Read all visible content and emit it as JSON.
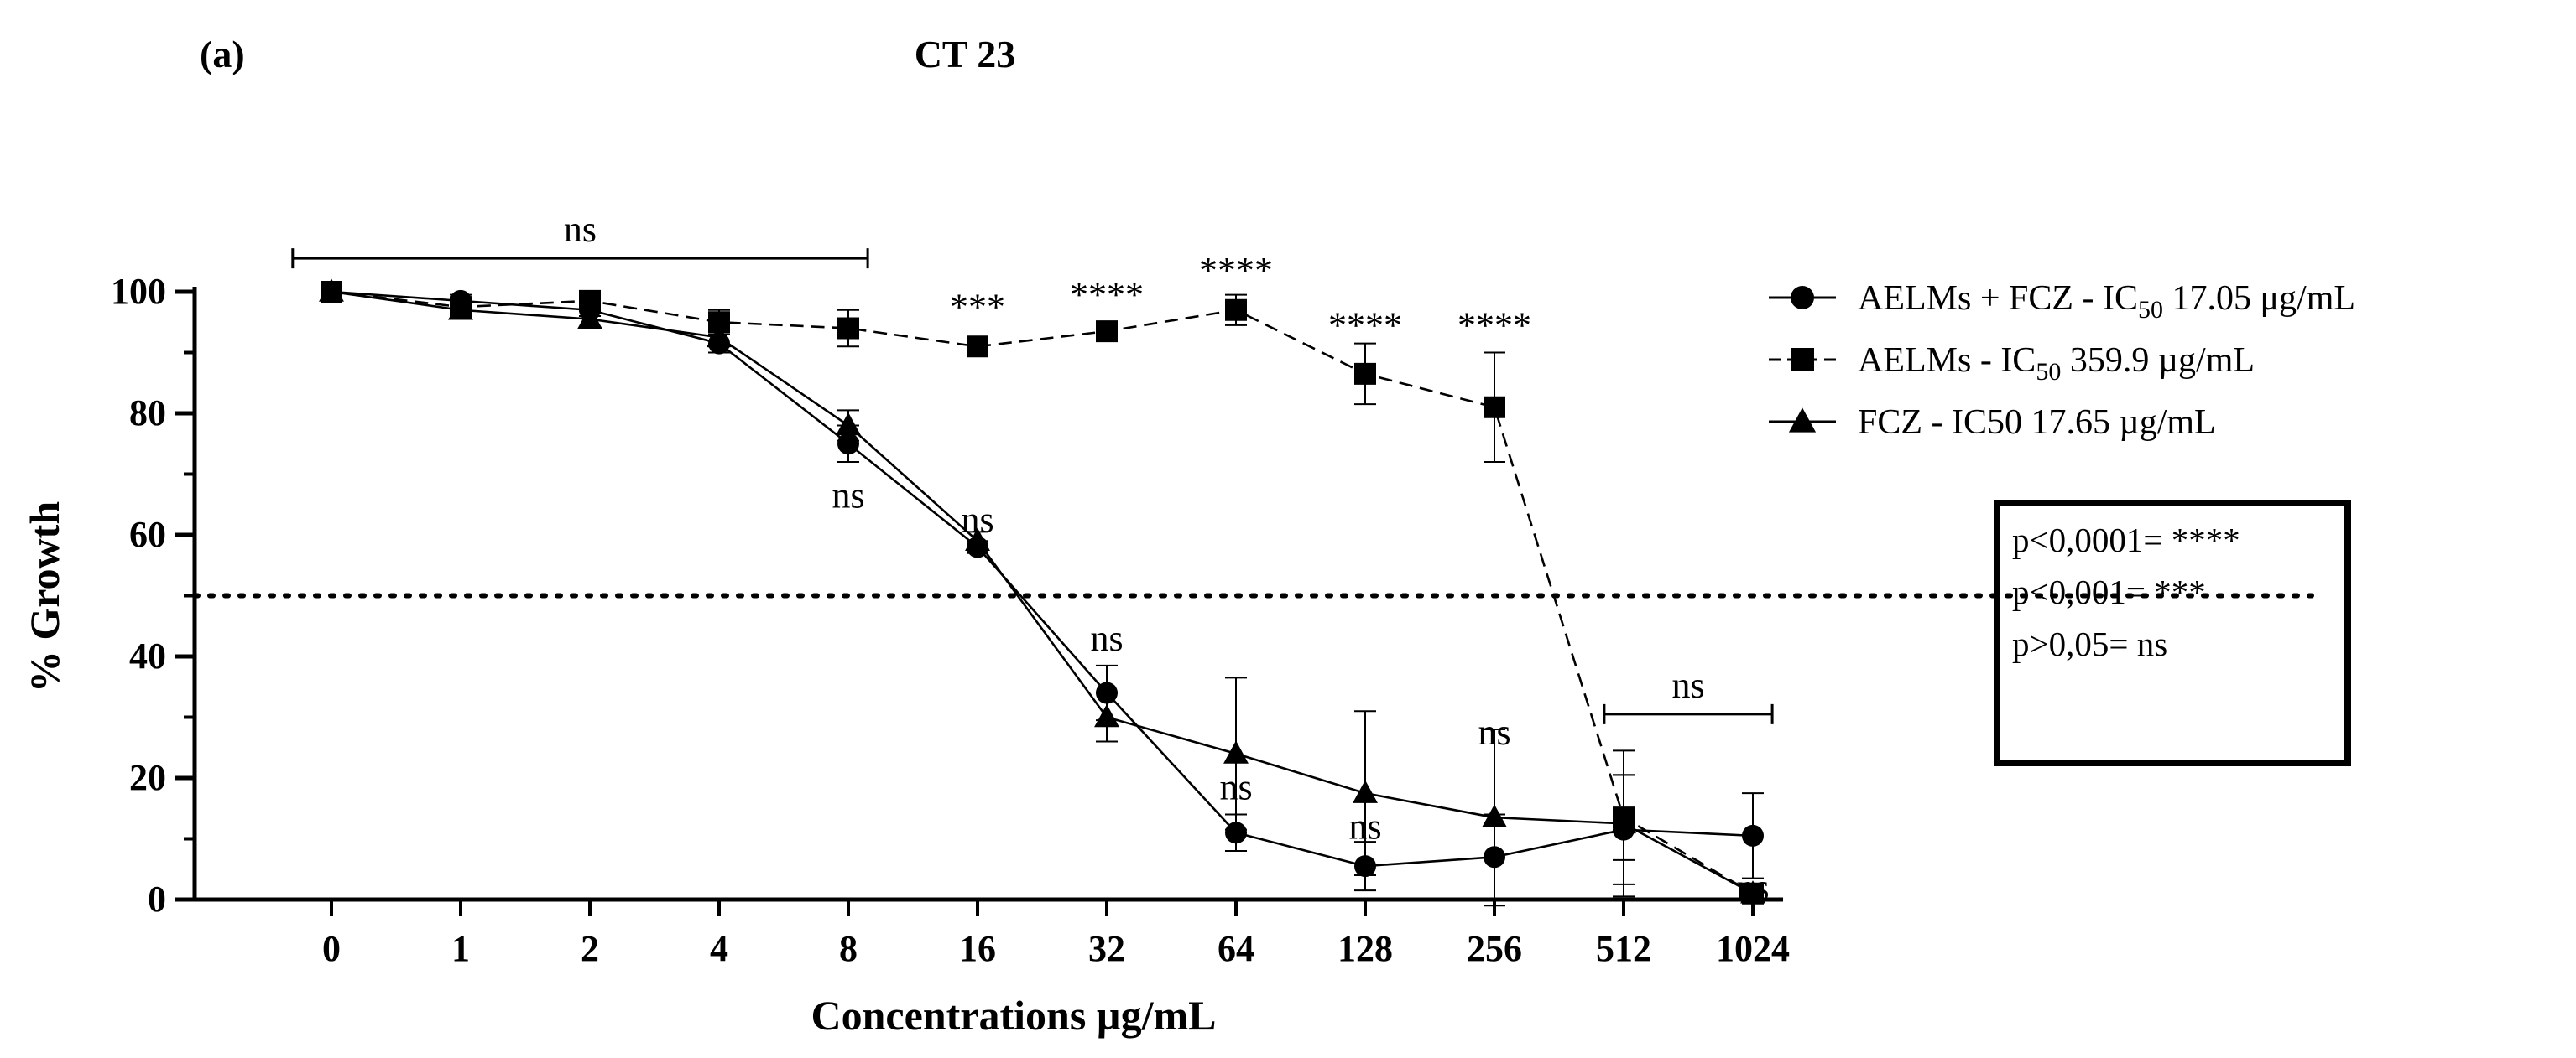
{
  "chart_data": {
    "type": "line",
    "panel_label": "(a)",
    "title": "CT 23",
    "xlabel": "Concentrations µg/mL",
    "ylabel": "% Growth",
    "categories": [
      "0",
      "1",
      "2",
      "4",
      "8",
      "16",
      "32",
      "64",
      "128",
      "256",
      "512",
      "1024"
    ],
    "ylim": [
      0,
      100
    ],
    "yticks": [
      "0",
      "20",
      "40",
      "60",
      "80",
      "100"
    ],
    "threshold": 50,
    "series": [
      {
        "name": "AELMs + FCZ - IC",
        "sub": "50",
        "ic_value": " 17.05 ",
        "unit": "μg/mL",
        "marker": "circle",
        "dash": "solid",
        "values": [
          100,
          98.5,
          97,
          91.5,
          75,
          58,
          34,
          11,
          5.5,
          7,
          11.5,
          10.5
        ],
        "errors": [
          0,
          1,
          1,
          1.5,
          3,
          1,
          4.5,
          3,
          4,
          7,
          9,
          7
        ]
      },
      {
        "name": "AELMs - IC",
        "sub": "50",
        "ic_value": " 359.9 ",
        "unit": "µg/mL",
        "marker": "square",
        "dash": "dashed",
        "values": [
          100,
          97.5,
          98.5,
          95,
          94,
          91,
          93.5,
          97,
          86.5,
          81,
          13.5,
          1
        ],
        "errors": [
          0,
          1.5,
          1.5,
          2,
          3,
          0.5,
          1,
          2.5,
          5,
          9,
          7,
          0.5
        ]
      },
      {
        "name": "FCZ - IC50",
        "sub": "",
        "ic_value": " 17.65 ",
        "unit": "µg/mL",
        "marker": "triangle",
        "dash": "solid",
        "values": [
          100,
          97,
          95.5,
          92.5,
          78,
          59,
          30,
          24,
          17.5,
          13.5,
          12.5,
          1
        ],
        "errors": [
          0,
          1,
          1.5,
          1.5,
          2.5,
          1.5,
          4,
          12.5,
          13.5,
          14.5,
          12,
          0.5
        ]
      }
    ],
    "annotations": [
      {
        "text": "ns",
        "x": 4,
        "y": 64.5
      },
      {
        "text": "***",
        "x": 5,
        "y": 95.5
      },
      {
        "text": "****",
        "x": 6,
        "y": 97.5
      },
      {
        "text": "****",
        "x": 7,
        "y": 101.5
      },
      {
        "text": "****",
        "x": 8,
        "y": 92.5
      },
      {
        "text": "****",
        "x": 9,
        "y": 92.5
      },
      {
        "text": "ns",
        "x": 5,
        "y": 60.5
      },
      {
        "text": "ns",
        "x": 6,
        "y": 41
      },
      {
        "text": "ns",
        "x": 7,
        "y": 16.5
      },
      {
        "text": "ns",
        "x": 8,
        "y": 10
      },
      {
        "text": "ns",
        "x": 9,
        "y": 25.5
      },
      {
        "text": "ns",
        "x": 11,
        "y": 0
      }
    ],
    "brackets": [
      {
        "text": "ns",
        "from": -0.3,
        "to": 4.15,
        "y": 105.5
      },
      {
        "text": "ns",
        "from": 9.85,
        "to": 11.15,
        "y": 30.5
      }
    ],
    "stats_box": [
      "p<0,0001= ****",
      "p<0,001= ***",
      "p>0,05= ns"
    ],
    "legend_position": "top-right"
  }
}
